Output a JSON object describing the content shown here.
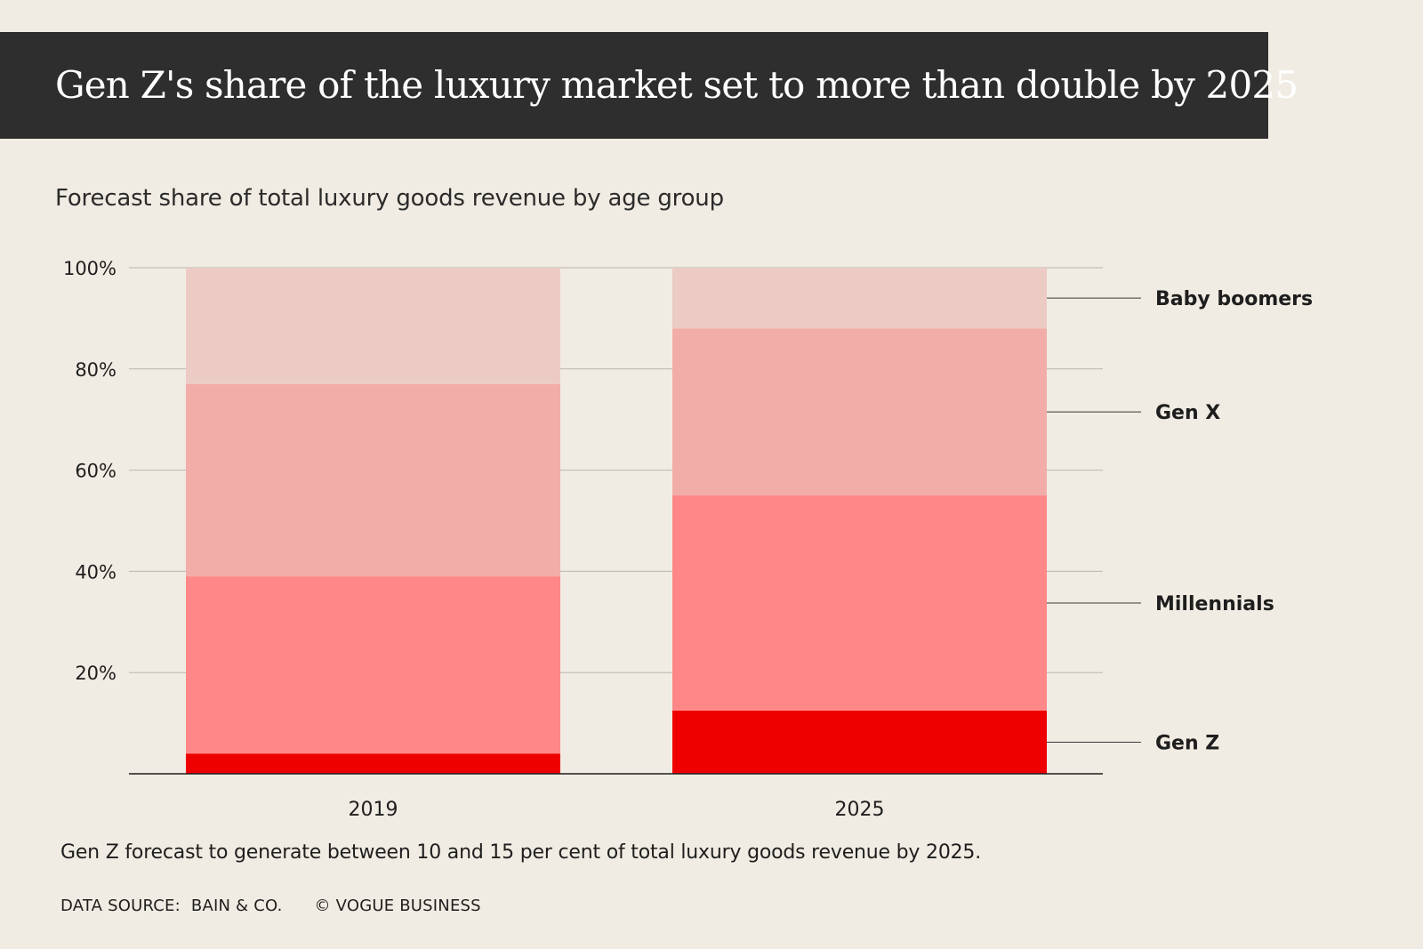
{
  "header": {
    "title": "Gen Z's share of the luxury market set to more than double by 2025",
    "subtitle": "Forecast share of total luxury goods revenue by age group"
  },
  "chart_data": {
    "type": "bar",
    "stacked": true,
    "categories": [
      "2019",
      "2025"
    ],
    "ylim": [
      0,
      100
    ],
    "yticks": [
      "100%",
      "80%",
      "60%",
      "40%",
      "20%"
    ],
    "ytick_values": [
      100,
      80,
      60,
      40,
      20
    ],
    "grid": true,
    "series": [
      {
        "name": "Gen Z",
        "values": [
          4,
          12.5
        ],
        "color": "#ee0000"
      },
      {
        "name": "Millennials",
        "values": [
          35,
          42.5
        ],
        "color": "#ff8787"
      },
      {
        "name": "Gen X",
        "values": [
          38,
          33
        ],
        "color": "#f2ada9"
      },
      {
        "name": "Baby boomers",
        "values": [
          23,
          12
        ],
        "color": "#ebcbc4"
      }
    ]
  },
  "footer": {
    "note": "Gen Z forecast to generate between 10 and 15 per cent of total luxury goods revenue by 2025.",
    "source_label": "DATA SOURCE:",
    "source_name": "BAIN & CO.",
    "copyright": "© VOGUE BUSINESS"
  }
}
